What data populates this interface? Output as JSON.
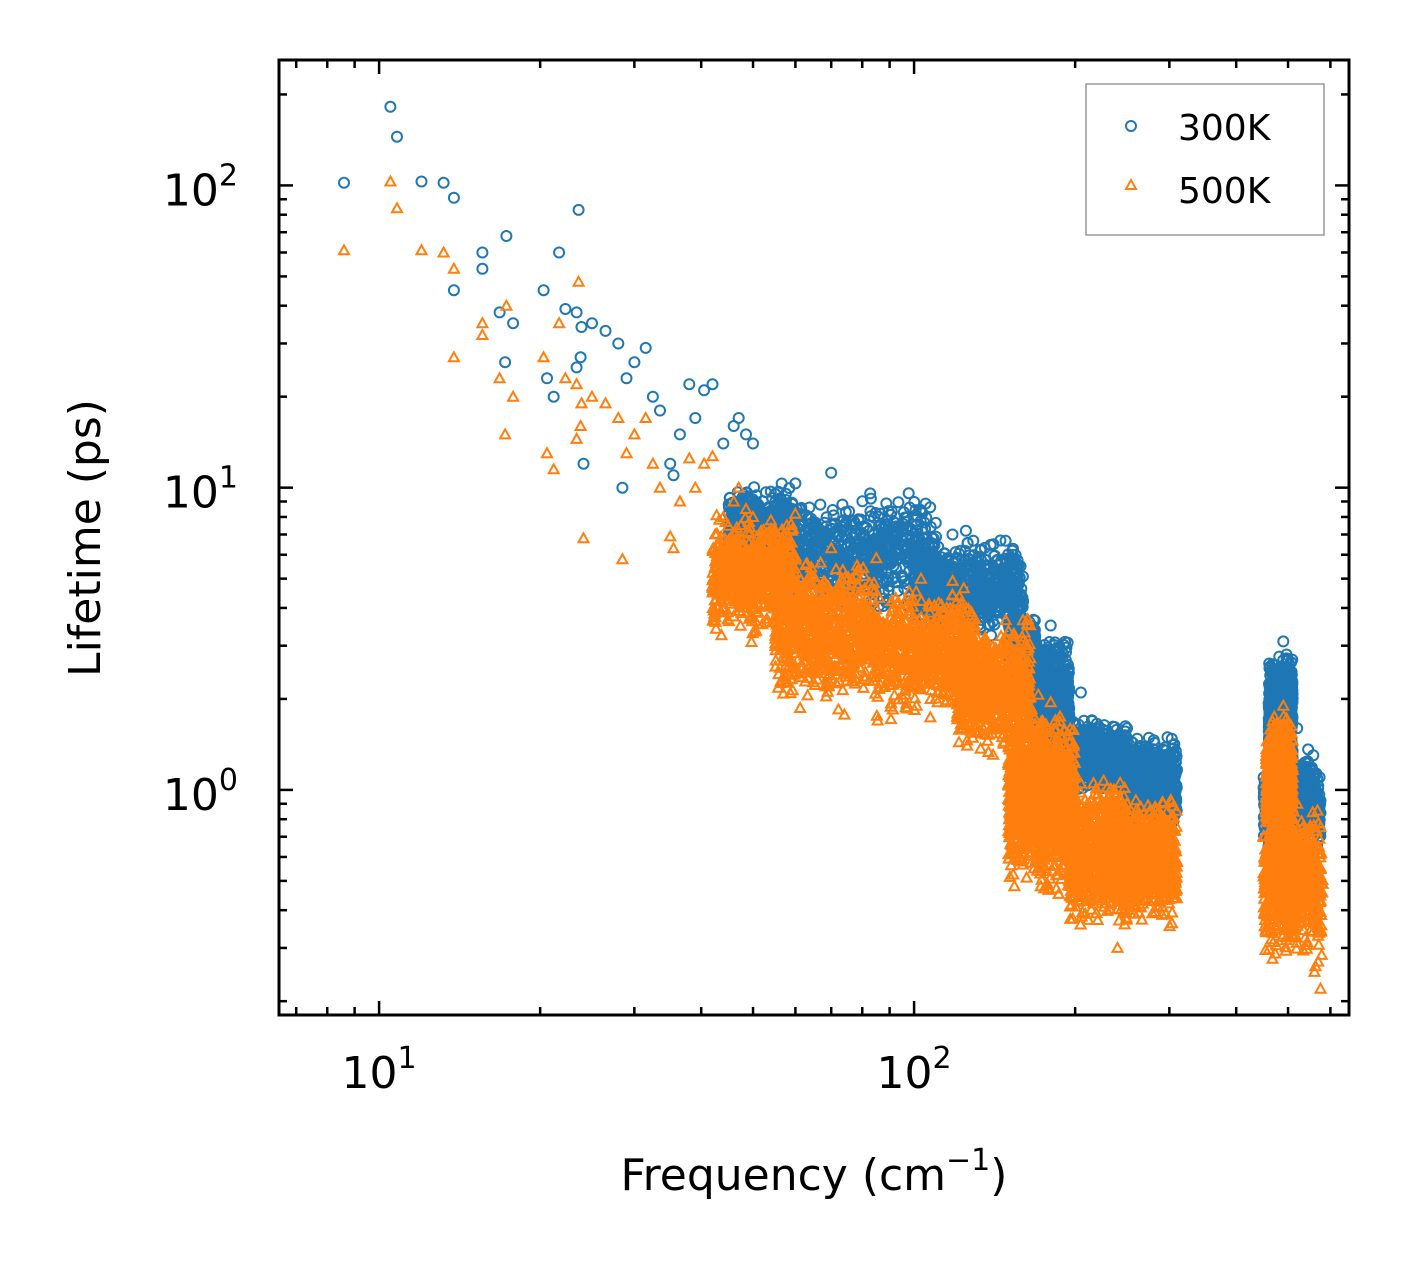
{
  "chart_data": {
    "type": "scatter",
    "xscale": "log",
    "yscale": "log",
    "xlabel": "Frequency (cm",
    "xlabel_superscript": "−1",
    "xlabel_suffix": ")",
    "ylabel": "Lifetime (ps)",
    "xlim": [
      6.5,
      650
    ],
    "ylim": [
      0.18,
      260
    ],
    "x_ticks": [
      {
        "value": 10,
        "base": "10",
        "exp": "1"
      },
      {
        "value": 100,
        "base": "10",
        "exp": "2"
      }
    ],
    "y_ticks": [
      {
        "value": 1,
        "base": "10",
        "exp": "0"
      },
      {
        "value": 10,
        "base": "10",
        "exp": "1"
      },
      {
        "value": 100,
        "base": "10",
        "exp": "2"
      }
    ],
    "legend_position": "top-right",
    "series": [
      {
        "name": "300K",
        "marker": "circle",
        "color": "#1f77b4",
        "points": [
          [
            8.6,
            102
          ],
          [
            10.5,
            182
          ],
          [
            10.8,
            145
          ],
          [
            12,
            103
          ],
          [
            13.2,
            102
          ],
          [
            13.8,
            91
          ],
          [
            13.8,
            45
          ],
          [
            15.6,
            60
          ],
          [
            15.6,
            53
          ],
          [
            16.8,
            38
          ],
          [
            17.2,
            26
          ],
          [
            17.3,
            68
          ],
          [
            17.8,
            35
          ],
          [
            20.3,
            45
          ],
          [
            20.6,
            23
          ],
          [
            21.2,
            20
          ],
          [
            21.7,
            60
          ],
          [
            22.3,
            39
          ],
          [
            23.4,
            38
          ],
          [
            23.6,
            83
          ],
          [
            23.4,
            25
          ],
          [
            23.9,
            34
          ],
          [
            24.1,
            12
          ],
          [
            23.8,
            27
          ],
          [
            25,
            35
          ],
          [
            26.5,
            33
          ],
          [
            28,
            30
          ],
          [
            28.5,
            10
          ],
          [
            29,
            23
          ],
          [
            30,
            26
          ],
          [
            31.5,
            29
          ],
          [
            32.5,
            20
          ],
          [
            33.5,
            18
          ],
          [
            35,
            12
          ],
          [
            35.5,
            11
          ],
          [
            36.5,
            15
          ],
          [
            38,
            22
          ],
          [
            39,
            17
          ],
          [
            40.5,
            21
          ],
          [
            42,
            22
          ],
          [
            44,
            14
          ],
          [
            46,
            16
          ],
          [
            47,
            17
          ],
          [
            48.5,
            15
          ],
          [
            50,
            14
          ],
          [
            70,
            11.2
          ],
          [
            103,
            8.3
          ],
          [
            118,
            7
          ],
          [
            125,
            7.2
          ],
          [
            172,
            2.9
          ],
          [
            180,
            3.5
          ],
          [
            205,
            2.1
          ],
          [
            215,
            1.7
          ],
          [
            250,
            1.6
          ],
          [
            285,
            1.3
          ],
          [
            305,
            0.8
          ],
          [
            450,
            1.1
          ],
          [
            490,
            3.1
          ],
          [
            500,
            2.2
          ],
          [
            520,
            1.6
          ],
          [
            560,
            0.75
          ],
          [
            575,
            0.45
          ]
        ],
        "bands": [
          {
            "x": [
              45,
              60
            ],
            "y": [
              4.5,
              11
            ]
          },
          {
            "x": [
              55,
              110
            ],
            "y": [
              3.5,
              10.5
            ]
          },
          {
            "x": [
              100,
              160
            ],
            "y": [
              3,
              7
            ]
          },
          {
            "x": [
              150,
              170
            ],
            "y": [
              1.6,
              4
            ]
          },
          {
            "x": [
              168,
              195
            ],
            "y": [
              1.1,
              3.4
            ]
          },
          {
            "x": [
              195,
              250
            ],
            "y": [
              0.95,
              1.75
            ]
          },
          {
            "x": [
              250,
              310
            ],
            "y": [
              0.7,
              1.6
            ]
          },
          {
            "x": [
              460,
              510
            ],
            "y": [
              1.1,
              3.0
            ]
          },
          {
            "x": [
              450,
              575
            ],
            "y": [
              0.55,
              1.4
            ]
          }
        ]
      },
      {
        "name": "500K",
        "marker": "triangle",
        "color": "#ff7f0e",
        "points": [
          [
            8.6,
            61
          ],
          [
            10.5,
            103
          ],
          [
            10.8,
            84
          ],
          [
            12,
            61
          ],
          [
            13.2,
            60
          ],
          [
            13.8,
            53
          ],
          [
            13.8,
            27
          ],
          [
            15.6,
            35
          ],
          [
            15.6,
            32
          ],
          [
            16.8,
            23
          ],
          [
            17.2,
            15
          ],
          [
            17.3,
            40
          ],
          [
            17.8,
            20
          ],
          [
            20.3,
            27
          ],
          [
            20.6,
            13
          ],
          [
            21.2,
            11.5
          ],
          [
            21.7,
            35
          ],
          [
            22.3,
            23
          ],
          [
            23.4,
            22
          ],
          [
            23.6,
            48
          ],
          [
            23.4,
            14.5
          ],
          [
            23.9,
            19
          ],
          [
            24.1,
            6.8
          ],
          [
            23.8,
            16
          ],
          [
            25,
            20
          ],
          [
            26.5,
            19
          ],
          [
            28,
            17
          ],
          [
            28.5,
            5.8
          ],
          [
            29,
            13
          ],
          [
            30,
            15
          ],
          [
            31.5,
            17
          ],
          [
            32.5,
            12
          ],
          [
            33.5,
            10
          ],
          [
            35,
            6.9
          ],
          [
            35.5,
            6.3
          ],
          [
            36.5,
            9
          ],
          [
            38,
            12.5
          ],
          [
            39,
            10
          ],
          [
            40.5,
            12
          ],
          [
            42,
            12.7
          ],
          [
            44,
            8
          ],
          [
            46,
            9
          ],
          [
            47,
            10
          ],
          [
            48.5,
            8.5
          ],
          [
            50,
            8
          ],
          [
            70,
            6.3
          ],
          [
            103,
            5.0
          ],
          [
            118,
            4.4
          ],
          [
            125,
            4.0
          ],
          [
            172,
            1.6
          ],
          [
            180,
            1.95
          ],
          [
            205,
            1.05
          ],
          [
            215,
            0.85
          ],
          [
            240,
            0.3
          ],
          [
            250,
            0.9
          ],
          [
            285,
            0.75
          ],
          [
            305,
            0.45
          ],
          [
            450,
            0.7
          ],
          [
            490,
            1.9
          ],
          [
            500,
            1.3
          ],
          [
            520,
            0.9
          ],
          [
            560,
            0.25
          ],
          [
            575,
            0.22
          ]
        ],
        "bands": [
          {
            "x": [
              42,
              60
            ],
            "y": [
              3,
              9
            ]
          },
          {
            "x": [
              55,
              85
            ],
            "y": [
              1.7,
              6.5
            ]
          },
          {
            "x": [
              85,
              130
            ],
            "y": [
              1.6,
              5
            ]
          },
          {
            "x": [
              120,
              165
            ],
            "y": [
              1.2,
              4
            ]
          },
          {
            "x": [
              150,
              175
            ],
            "y": [
              0.45,
              2.2
            ]
          },
          {
            "x": [
              172,
              200
            ],
            "y": [
              0.4,
              2.0
            ]
          },
          {
            "x": [
              195,
              250
            ],
            "y": [
              0.32,
              1.2
            ]
          },
          {
            "x": [
              240,
              310
            ],
            "y": [
              0.32,
              1.05
            ]
          },
          {
            "x": [
              455,
              510
            ],
            "y": [
              0.6,
              1.9
            ]
          },
          {
            "x": [
              450,
              580
            ],
            "y": [
              0.25,
              0.95
            ]
          }
        ]
      }
    ]
  }
}
